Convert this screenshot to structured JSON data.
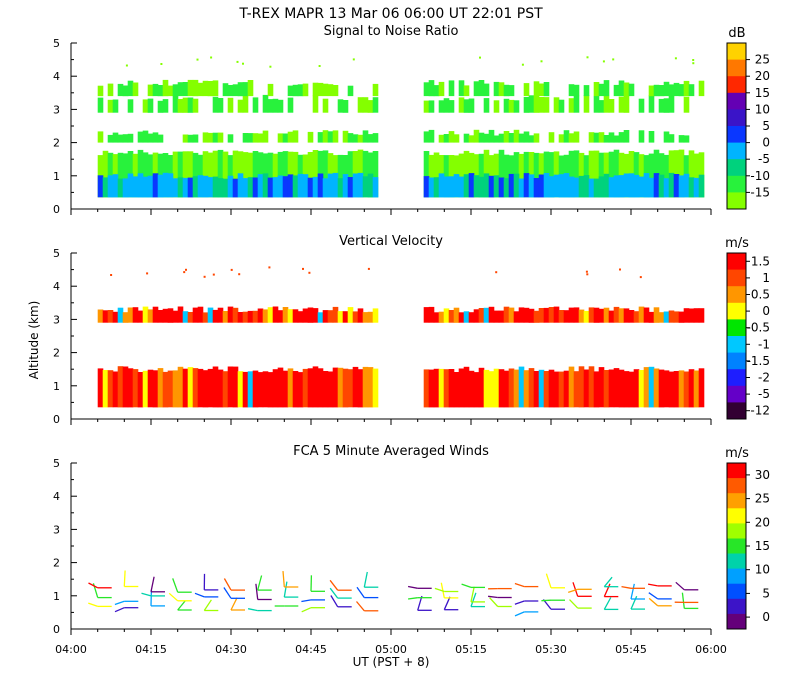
{
  "header": {
    "title": "T-REX   MAPR 13 Mar 06   06:00 UT   22:01   PST"
  },
  "x_axis": {
    "label": "UT  (PST + 8)",
    "ticks": [
      "04:00",
      "04:15",
      "04:30",
      "04:45",
      "05:00",
      "05:15",
      "05:30",
      "05:45",
      "06:00"
    ]
  },
  "colors": {
    "palette": [
      "#84ff00",
      "#28f23c",
      "#00d27d",
      "#00b4ff",
      "#0a37ff",
      "#3a14c8",
      "#6400b4",
      "#ff2800",
      "#ff7800",
      "#ffd200"
    ]
  },
  "chart_data": [
    {
      "type": "heatmap",
      "title": "Signal to Noise Ratio",
      "ylabel": "",
      "ylim": [
        0,
        5
      ],
      "yticks": [
        "0",
        "1",
        "2",
        "3",
        "4",
        "5"
      ],
      "colorbar": {
        "unit": "dB",
        "labels": [
          "-15",
          "-10",
          "-5",
          "0",
          "5",
          "10",
          "15",
          "20",
          "25"
        ],
        "colors": [
          "#84ff00",
          "#28f23c",
          "#00d27d",
          "#00b4ff",
          "#0a37ff",
          "#3a14c8",
          "#6400b4",
          "#ff2800",
          "#ff7800",
          "#ffd200"
        ]
      },
      "data_gap": [
        "04:57",
        "05:05"
      ],
      "layers": [
        {
          "y": [
            0.35,
            1.7
          ],
          "value": -10
        },
        {
          "y": [
            0.35,
            1.0
          ],
          "value": -5
        },
        {
          "y": [
            2.0,
            2.3
          ],
          "value": -12
        },
        {
          "y": [
            2.9,
            3.35
          ],
          "value": -12
        },
        {
          "y": [
            3.4,
            3.8
          ],
          "value": -15
        }
      ]
    },
    {
      "type": "heatmap",
      "title": "Vertical Velocity",
      "ylabel": "Altitude (km)",
      "ylim": [
        0,
        5
      ],
      "yticks": [
        "0",
        "1",
        "2",
        "3",
        "4",
        "5"
      ],
      "colorbar": {
        "unit": "m/s",
        "labels": [
          "1.5",
          "1",
          "0.5",
          "0",
          "-0.5",
          "-1",
          "-1.5",
          "-2",
          "-5",
          "-12"
        ],
        "colors": [
          "#ff0000",
          "#ff4600",
          "#ff9600",
          "#ffff00",
          "#00e600",
          "#00c8ff",
          "#0082ff",
          "#1e1eff",
          "#6400c8",
          "#320032"
        ]
      },
      "data_gap": [
        "04:57",
        "05:05"
      ],
      "layers": [
        {
          "y": [
            0.35,
            1.5
          ],
          "value": 1.5
        },
        {
          "y": [
            2.9,
            3.3
          ],
          "value": 1.0
        }
      ]
    },
    {
      "type": "scatter",
      "title": "FCA 5 Minute Averaged Winds",
      "ylabel": "",
      "ylim": [
        0,
        5
      ],
      "yticks": [
        "0",
        "1",
        "2",
        "3",
        "4",
        "5"
      ],
      "colorbar": {
        "unit": "m/s",
        "labels": [
          "30",
          "25",
          "20",
          "15",
          "10",
          "5",
          "0"
        ],
        "colors": [
          "#ff0000",
          "#ff5a00",
          "#ffa000",
          "#ffff00",
          "#a0ff00",
          "#28e628",
          "#00d2aa",
          "#00a0ff",
          "#0050ff",
          "#3c14c8",
          "#64007a"
        ]
      },
      "times": [
        "04:05",
        "04:10",
        "04:15",
        "04:20",
        "04:25",
        "04:30",
        "04:35",
        "04:40",
        "04:45",
        "04:50",
        "04:55",
        "05:05",
        "05:10",
        "05:15",
        "05:20",
        "05:25",
        "05:30",
        "05:35",
        "05:40",
        "05:45",
        "05:50",
        "05:55"
      ],
      "altitudes_km": [
        0.6,
        0.9,
        1.2
      ]
    }
  ]
}
